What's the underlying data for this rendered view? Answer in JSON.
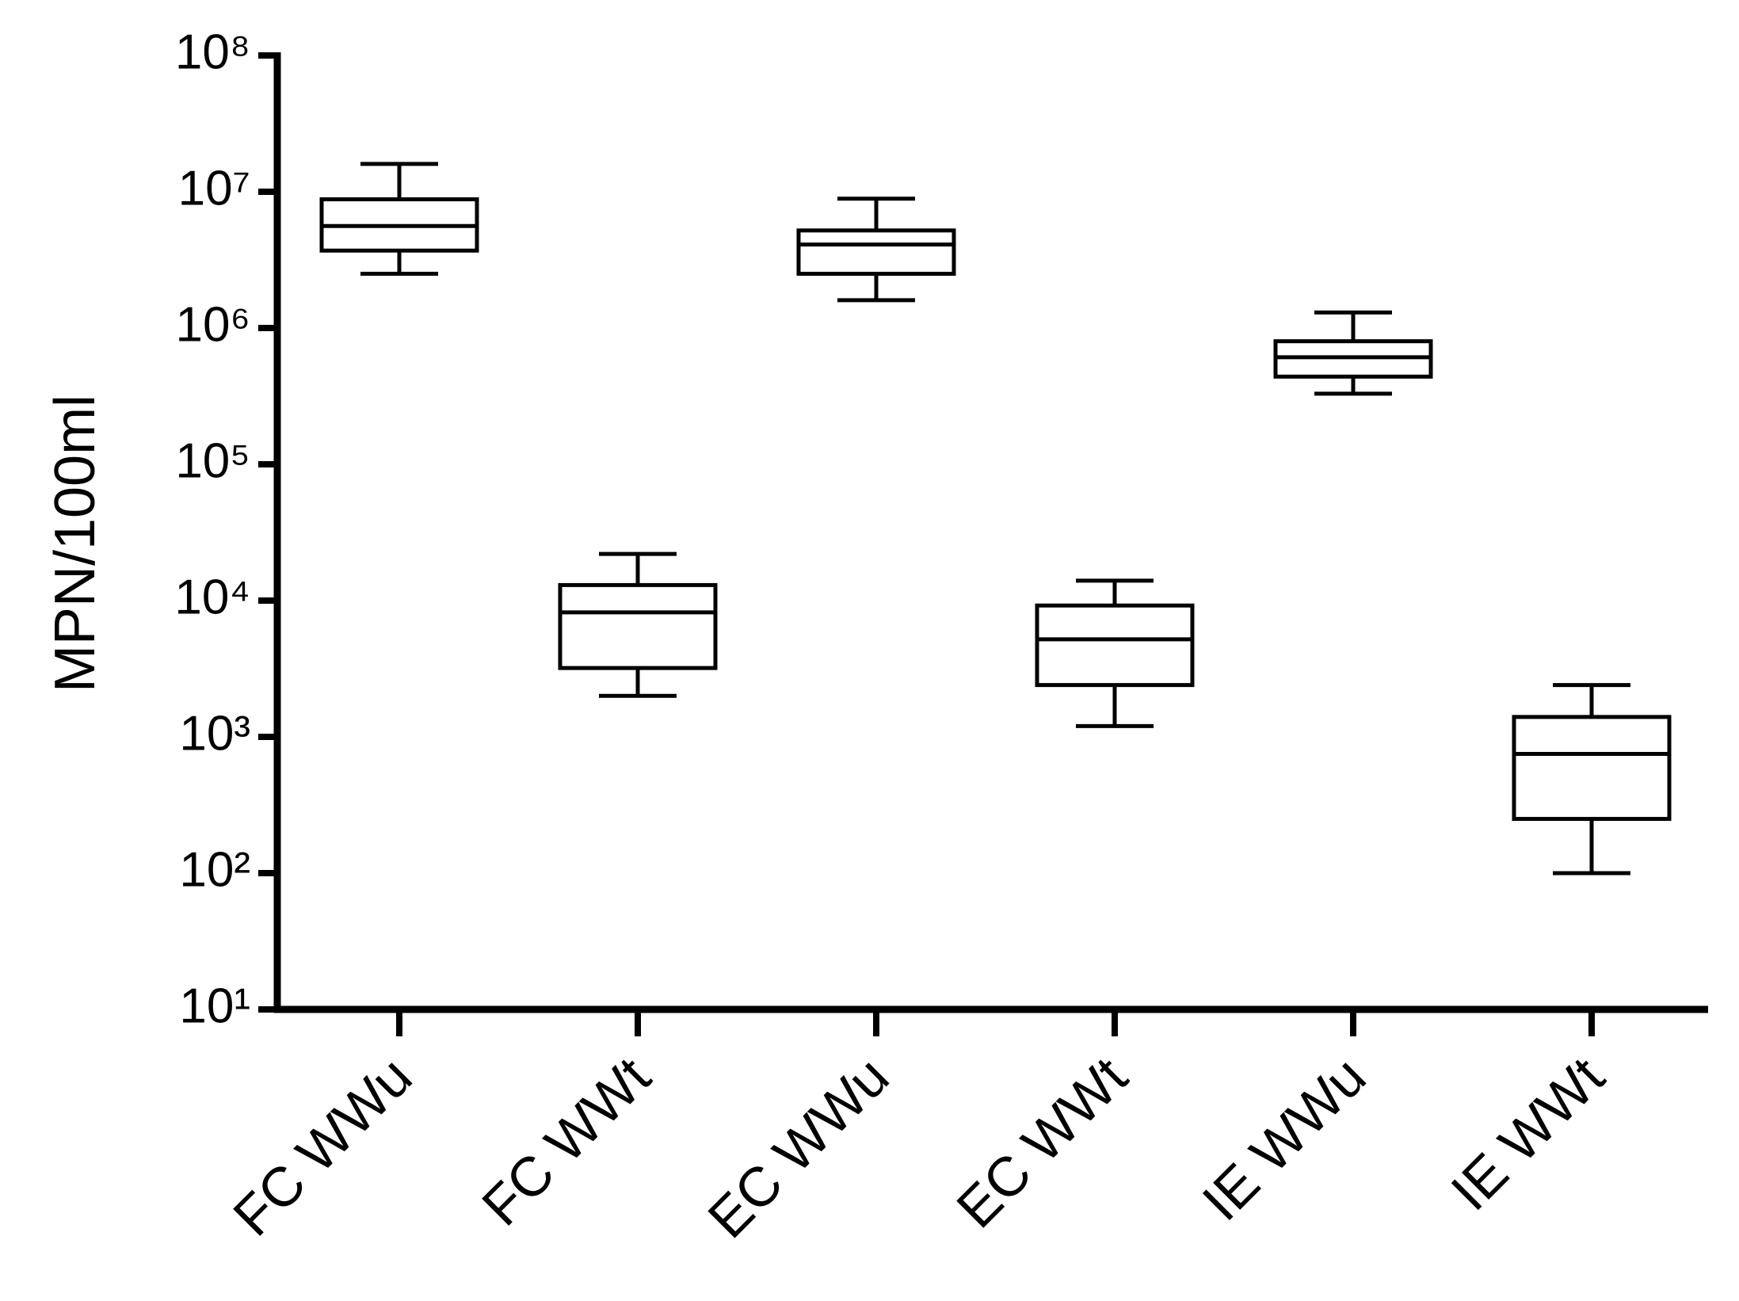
{
  "chart_data": {
    "type": "box",
    "y_label": "MPN/100ml",
    "log_scale": true,
    "categories": [
      "FC WWu",
      "FC WWt",
      "EC WWu",
      "EC WWt",
      "IE WWu",
      "IE WWt"
    ],
    "boxes": [
      {
        "min": 2500000,
        "q1": 3700000,
        "median": 5600000,
        "q3": 8800000,
        "max": 16000000
      },
      {
        "min": 2000,
        "q1": 3200,
        "median": 8200,
        "q3": 13000,
        "max": 22000
      },
      {
        "min": 1600000,
        "q1": 2500000,
        "median": 4100000,
        "q3": 5200000,
        "max": 8900000
      },
      {
        "min": 1200,
        "q1": 2400,
        "median": 5200,
        "q3": 9200,
        "max": 14000
      },
      {
        "min": 330000,
        "q1": 440000,
        "median": 610000,
        "q3": 800000,
        "max": 1300000
      },
      {
        "min": 100,
        "q1": 250,
        "median": 750,
        "q3": 1400,
        "max": 2400
      }
    ],
    "color": "#000000",
    "ylim": [
      10,
      100000000
    ],
    "yticks": [
      {
        "value": 10,
        "label": "10¹"
      },
      {
        "value": 100,
        "label": "10²"
      },
      {
        "value": 1000,
        "label": "10³"
      },
      {
        "value": 10000,
        "label": "10⁴"
      },
      {
        "value": 100000,
        "label": "10⁵"
      },
      {
        "value": 1000000,
        "label": "10⁶"
      },
      {
        "value": 10000000,
        "label": "10⁷"
      },
      {
        "value": 100000000,
        "label": "10⁸"
      }
    ]
  }
}
